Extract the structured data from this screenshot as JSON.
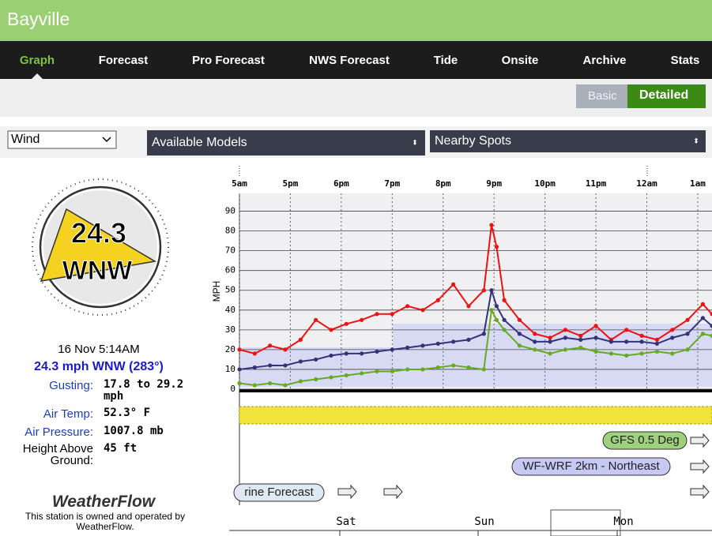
{
  "header": {
    "title": "Bayville"
  },
  "nav": [
    "Graph",
    "Forecast",
    "Pro Forecast",
    "NWS Forecast",
    "Tide",
    "Onsite",
    "Archive",
    "Stats"
  ],
  "view_toggle": [
    "Basic",
    "Detailed"
  ],
  "selectors": [
    "Wind",
    "Available Models",
    "Nearby Spots"
  ],
  "station": {
    "speed": "24.3",
    "direction": "WNW",
    "time": "16 Nov 5:14AM",
    "summary": "24.3 mph WNW (283°)",
    "details": [
      {
        "label": "Gusting:",
        "value": "17.8 to 29.2 mph"
      },
      {
        "label": "Air Temp:",
        "value": "52.3° F"
      },
      {
        "label": "Air Pressure:",
        "value": "1007.8 mb"
      },
      {
        "label": "Height Above Ground:",
        "value": "45 ft"
      }
    ],
    "logo": "WeatherFlow",
    "credit": "This station is owned and operated by WeatherFlow."
  },
  "models": [
    "GFS 0.5 Deg",
    "WF-WRF 2km - Northeast",
    "rine Forecast"
  ],
  "days": [
    "Sat",
    "Sun",
    "Mon"
  ],
  "chart_data": {
    "type": "line",
    "ylabel": "MPH",
    "x": [
      0,
      0.3,
      0.6,
      0.9,
      1.2,
      1.5,
      1.8,
      2.1,
      2.4,
      2.7,
      3.0,
      3.3,
      3.6,
      3.9,
      4.2,
      4.5,
      4.8,
      4.95,
      5.05,
      5.2,
      5.5,
      5.8,
      6.1,
      6.4,
      6.7,
      7.0,
      7.3,
      7.6,
      7.9,
      8.2,
      8.5,
      8.8,
      9.1,
      9.28
    ],
    "xlim": [
      0,
      9.28
    ],
    "xticks": [
      {
        "value": 0,
        "label": "5am"
      },
      {
        "value": 1,
        "label": "5pm"
      },
      {
        "value": 2,
        "label": "6pm"
      },
      {
        "value": 3,
        "label": "7pm"
      },
      {
        "value": 4,
        "label": "8pm"
      },
      {
        "value": 5,
        "label": "9pm"
      },
      {
        "value": 6,
        "label": "10pm"
      },
      {
        "value": 7,
        "label": "11pm"
      },
      {
        "value": 8,
        "label": "12am"
      },
      {
        "value": 9,
        "label": "1am"
      }
    ],
    "ylim": [
      0,
      99
    ],
    "yticks": [
      0,
      10,
      20,
      30,
      40,
      50,
      60,
      70,
      80,
      90
    ],
    "grid": true,
    "series": [
      {
        "color": "#ee1111",
        "values": [
          20,
          18,
          22,
          20,
          25,
          35,
          30,
          33,
          35,
          38,
          38,
          42,
          40,
          45,
          53,
          42,
          50,
          83,
          72,
          45,
          35,
          28,
          26,
          30,
          27,
          32,
          25,
          30,
          27,
          25,
          30,
          35,
          43,
          38
        ]
      },
      {
        "color": "#33337a",
        "values": [
          10,
          11,
          12,
          12,
          14,
          15,
          17,
          18,
          18,
          19,
          20,
          21,
          22,
          23,
          24,
          25,
          28,
          50,
          42,
          35,
          28,
          24,
          24,
          26,
          25,
          26,
          24,
          24,
          24,
          23,
          26,
          28,
          36,
          32
        ]
      },
      {
        "color": "#66aa22",
        "values": [
          3,
          2,
          3,
          2,
          4,
          5,
          6,
          7,
          8,
          9,
          9,
          10,
          10,
          11,
          12,
          11,
          10,
          40,
          35,
          30,
          22,
          20,
          18,
          20,
          21,
          19,
          18,
          17,
          18,
          19,
          18,
          20,
          28,
          27
        ]
      }
    ]
  }
}
